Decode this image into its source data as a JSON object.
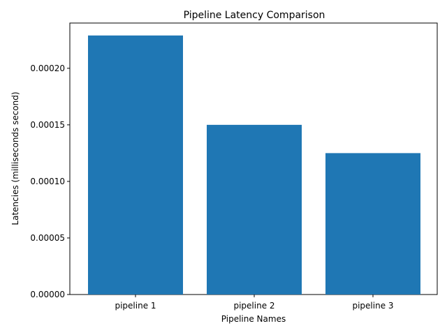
{
  "chart_data": {
    "type": "bar",
    "title": "Pipeline Latency Comparison",
    "xlabel": "Pipeline Names",
    "ylabel": "Latencies (milliseconds second)",
    "categories": [
      "pipeline 1",
      "pipeline 2",
      "pipeline 3"
    ],
    "values": [
      0.000229,
      0.00015,
      0.000125
    ],
    "ylim": [
      0,
      0.00024
    ],
    "yticks": [
      0,
      5e-05,
      0.0001,
      0.00015,
      0.0002
    ],
    "ytick_labels": [
      "0.00000",
      "0.00005",
      "0.00010",
      "0.00015",
      "0.00020"
    ],
    "bar_color": "#1f77b4",
    "grid": false,
    "legend": "none"
  }
}
